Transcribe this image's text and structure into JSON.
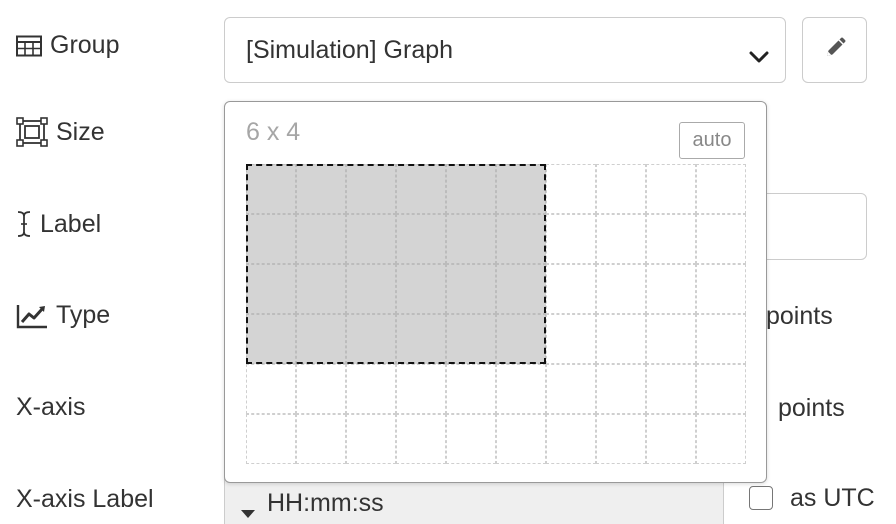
{
  "rows": {
    "group": {
      "label": "Group",
      "icon": "table-icon"
    },
    "size": {
      "label": "Size",
      "icon": "size-frame-icon"
    },
    "label": {
      "label": "Label",
      "icon": "text-cursor-icon"
    },
    "type": {
      "label": "Type",
      "icon": "line-chart-icon"
    },
    "xaxis": {
      "label": "X-axis"
    },
    "xaxis_label": {
      "label": "X-axis Label"
    }
  },
  "group_select": {
    "value": "[Simulation] Graph",
    "icon": "chevron-down-icon"
  },
  "edit_button": {
    "icon": "pencil-icon"
  },
  "type_suffix": "points",
  "xaxis_suffix": "points",
  "xaxis_label_field": {
    "value": "HH:mm:ss",
    "icon": "caret-down-icon"
  },
  "as_utc": {
    "label": "as UTC",
    "checked": false
  },
  "size_picker": {
    "readout": "6 x 4",
    "auto_label": "auto",
    "grid_columns": 10,
    "grid_rows": 6,
    "selected_width": 6,
    "selected_height": 4
  }
}
